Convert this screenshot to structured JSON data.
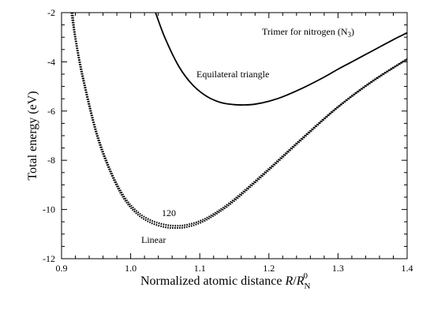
{
  "chart_data": {
    "type": "line",
    "title": "",
    "xlabel": "Normalized atomic distance",
    "xlabel_symbol": {
      "var": "R",
      "slash": "/",
      "base": "R",
      "sub": "N",
      "sup": "0"
    },
    "ylabel": "Total energy (eV)",
    "xlim": [
      0.9,
      1.4
    ],
    "ylim": [
      -12,
      -2
    ],
    "x_ticks": [
      0.9,
      1.0,
      1.1,
      1.2,
      1.3,
      1.4
    ],
    "x_tick_labels": [
      "0.9",
      "1.0",
      "1.1",
      "1.2",
      "1.3",
      "1.4"
    ],
    "y_ticks": [
      -12,
      -10,
      -8,
      -6,
      -4,
      -2
    ],
    "y_tick_labels": [
      "-12",
      "-10",
      "-8",
      "-6",
      "-4",
      "-2"
    ],
    "grid": false,
    "legend": "none",
    "series": [
      {
        "name": "Equilateral triangle",
        "style": "solid",
        "color": "#000000",
        "x": [
          1.036,
          1.05,
          1.07,
          1.09,
          1.11,
          1.13,
          1.15,
          1.165,
          1.18,
          1.2,
          1.22,
          1.25,
          1.28,
          1.3,
          1.32,
          1.35,
          1.38,
          1.4
        ],
        "y": [
          -2.0,
          -3.05,
          -4.2,
          -4.95,
          -5.4,
          -5.65,
          -5.74,
          -5.75,
          -5.72,
          -5.6,
          -5.42,
          -5.05,
          -4.62,
          -4.3,
          -4.0,
          -3.55,
          -3.1,
          -2.82
        ]
      },
      {
        "name": "Linear",
        "style": "dotted",
        "color": "#000000",
        "x": [
          0.914,
          0.92,
          0.93,
          0.95,
          0.97,
          0.99,
          1.01,
          1.03,
          1.05,
          1.065,
          1.08,
          1.1,
          1.12,
          1.15,
          1.2,
          1.25,
          1.3,
          1.35,
          1.4
        ],
        "y": [
          -2.0,
          -3.1,
          -4.6,
          -6.9,
          -8.45,
          -9.55,
          -10.2,
          -10.55,
          -10.72,
          -10.75,
          -10.72,
          -10.55,
          -10.25,
          -9.65,
          -8.4,
          -7.1,
          -5.85,
          -4.8,
          -3.9
        ]
      },
      {
        "name": "120",
        "style": "dotted",
        "color": "#000000",
        "x": [
          0.916,
          0.92,
          0.93,
          0.95,
          0.97,
          0.99,
          1.01,
          1.03,
          1.05,
          1.065,
          1.08,
          1.1,
          1.12,
          1.15,
          1.2,
          1.25,
          1.3,
          1.35,
          1.4
        ],
        "y": [
          -2.0,
          -2.95,
          -4.45,
          -6.78,
          -8.35,
          -9.45,
          -10.1,
          -10.45,
          -10.62,
          -10.66,
          -10.63,
          -10.47,
          -10.18,
          -9.58,
          -8.34,
          -7.05,
          -5.82,
          -4.77,
          -3.88
        ]
      }
    ],
    "annotations": {
      "trimer": "Trimer for nitrogen (N",
      "trimer_sub": "3",
      "trimer_close": ")",
      "equilateral": "Equilateral triangle",
      "angle_120": "120",
      "linear": "Linear"
    }
  }
}
